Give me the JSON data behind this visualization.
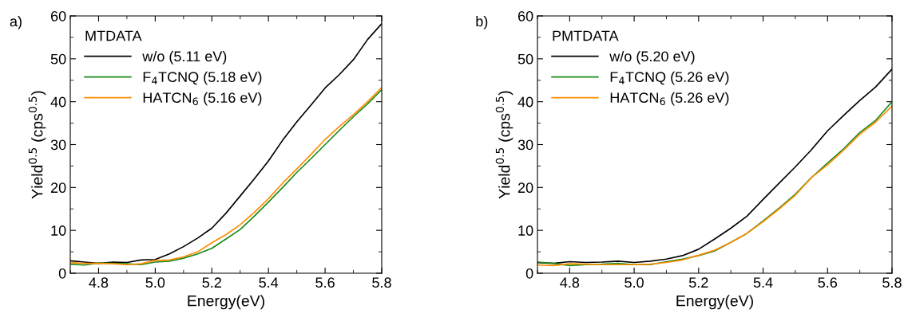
{
  "chart_data": [
    {
      "type": "line",
      "xlabel": "Energy(eV)",
      "ylabel": "Yield$^{0.5}$ (cps$^{0.5}$)",
      "legend_title": "MTDATA",
      "legend": "top left",
      "annotations": [
        "a)"
      ],
      "x": [
        4.7,
        4.75,
        4.8,
        4.85,
        4.9,
        4.95,
        5.0,
        5.05,
        5.1,
        5.15,
        5.2,
        5.25,
        5.3,
        5.35,
        5.4,
        5.45,
        5.5,
        5.55,
        5.6,
        5.65,
        5.7,
        5.75,
        5.8
      ],
      "xlim": [
        4.7,
        5.8
      ],
      "xticks": [
        4.8,
        {
          "value": 5.0,
          "label": "5.0"
        },
        5.2,
        5.4,
        5.6,
        5.8
      ],
      "ylim": [
        0,
        60
      ],
      "yticks": [
        0,
        10,
        20,
        30,
        40,
        50,
        60
      ],
      "grid": false,
      "marker": "none",
      "line_style": "solid",
      "series": [
        {
          "name": "w/o (5.11 eV)",
          "color": "#000000",
          "values": [
            2.9,
            2.6,
            2.3,
            2.6,
            2.5,
            3.1,
            3.2,
            4.5,
            6.2,
            8.2,
            10.5,
            14,
            18,
            22,
            26.2,
            31,
            35.3,
            39.2,
            43.2,
            46.3,
            49.8,
            54.5,
            58.2
          ]
        },
        {
          "name": "F$_{4}$TCNQ (5.18 eV)",
          "color": "#1a8a1a",
          "values": [
            2.1,
            1.9,
            2.4,
            2.3,
            2.2,
            2.0,
            2.6,
            2.8,
            3.5,
            4.5,
            5.8,
            8,
            10.2,
            13.3,
            16.6,
            20,
            23.5,
            26.7,
            30,
            33.3,
            36.5,
            39.5,
            42.8
          ]
        },
        {
          "name": "HATCN$_{6}$ (5.16 eV)",
          "color": "#ff8c00",
          "values": [
            2.5,
            2.3,
            2.3,
            2.2,
            2.0,
            2.2,
            3.0,
            3.1,
            3.8,
            5.0,
            7.1,
            9.0,
            11.3,
            14.2,
            17.4,
            21,
            24.3,
            27.7,
            31.2,
            34.2,
            37,
            40,
            43.3
          ]
        }
      ]
    },
    {
      "type": "line",
      "xlabel": "Energy(eV)",
      "ylabel": "Yield$^{0.5}$ (cps$^{0.5}$)",
      "legend_title": "PMTDATA",
      "legend": "top left",
      "annotations": [
        "b)"
      ],
      "x": [
        4.7,
        4.75,
        4.8,
        4.85,
        4.9,
        4.95,
        5.0,
        5.05,
        5.1,
        5.15,
        5.2,
        5.25,
        5.3,
        5.35,
        5.4,
        5.45,
        5.5,
        5.55,
        5.6,
        5.65,
        5.7,
        5.75,
        5.8
      ],
      "xlim": [
        4.7,
        5.8
      ],
      "xticks": [
        4.8,
        {
          "value": 5.0,
          "label": "5.0"
        },
        5.2,
        5.4,
        5.6,
        5.8
      ],
      "ylim": [
        0,
        60
      ],
      "yticks": [
        0,
        10,
        20,
        30,
        40,
        50,
        60
      ],
      "grid": false,
      "marker": "none",
      "line_style": "solid",
      "series": [
        {
          "name": "w/o (5.20 eV)",
          "color": "#000000",
          "values": [
            2.5,
            2.3,
            2.7,
            2.5,
            2.6,
            2.8,
            2.5,
            2.8,
            3.3,
            4.1,
            5.6,
            8,
            10.5,
            13.3,
            17.2,
            21,
            24.8,
            28.8,
            33.2,
            36.8,
            40.3,
            43.5,
            47.6
          ]
        },
        {
          "name": "F$_{4}$TCNQ (5.26 eV)",
          "color": "#1a8a1a",
          "values": [
            2.6,
            2.3,
            1.8,
            2.0,
            2.1,
            2.3,
            2.0,
            2.0,
            2.7,
            3.3,
            4.1,
            5.2,
            7.2,
            9.3,
            12.2,
            15.2,
            18.4,
            22.3,
            25.7,
            29,
            32.8,
            35.7,
            40
          ]
        },
        {
          "name": "HATCN$_{6}$ (5.26 eV)",
          "color": "#ff8c00",
          "values": [
            1.9,
            1.8,
            2.2,
            2.1,
            2.0,
            2.0,
            2.0,
            2.1,
            2.5,
            3.1,
            4.2,
            5.4,
            7.2,
            9.3,
            12,
            15,
            18.2,
            22.3,
            25.3,
            28.7,
            32.4,
            35.3,
            39
          ]
        }
      ]
    }
  ]
}
